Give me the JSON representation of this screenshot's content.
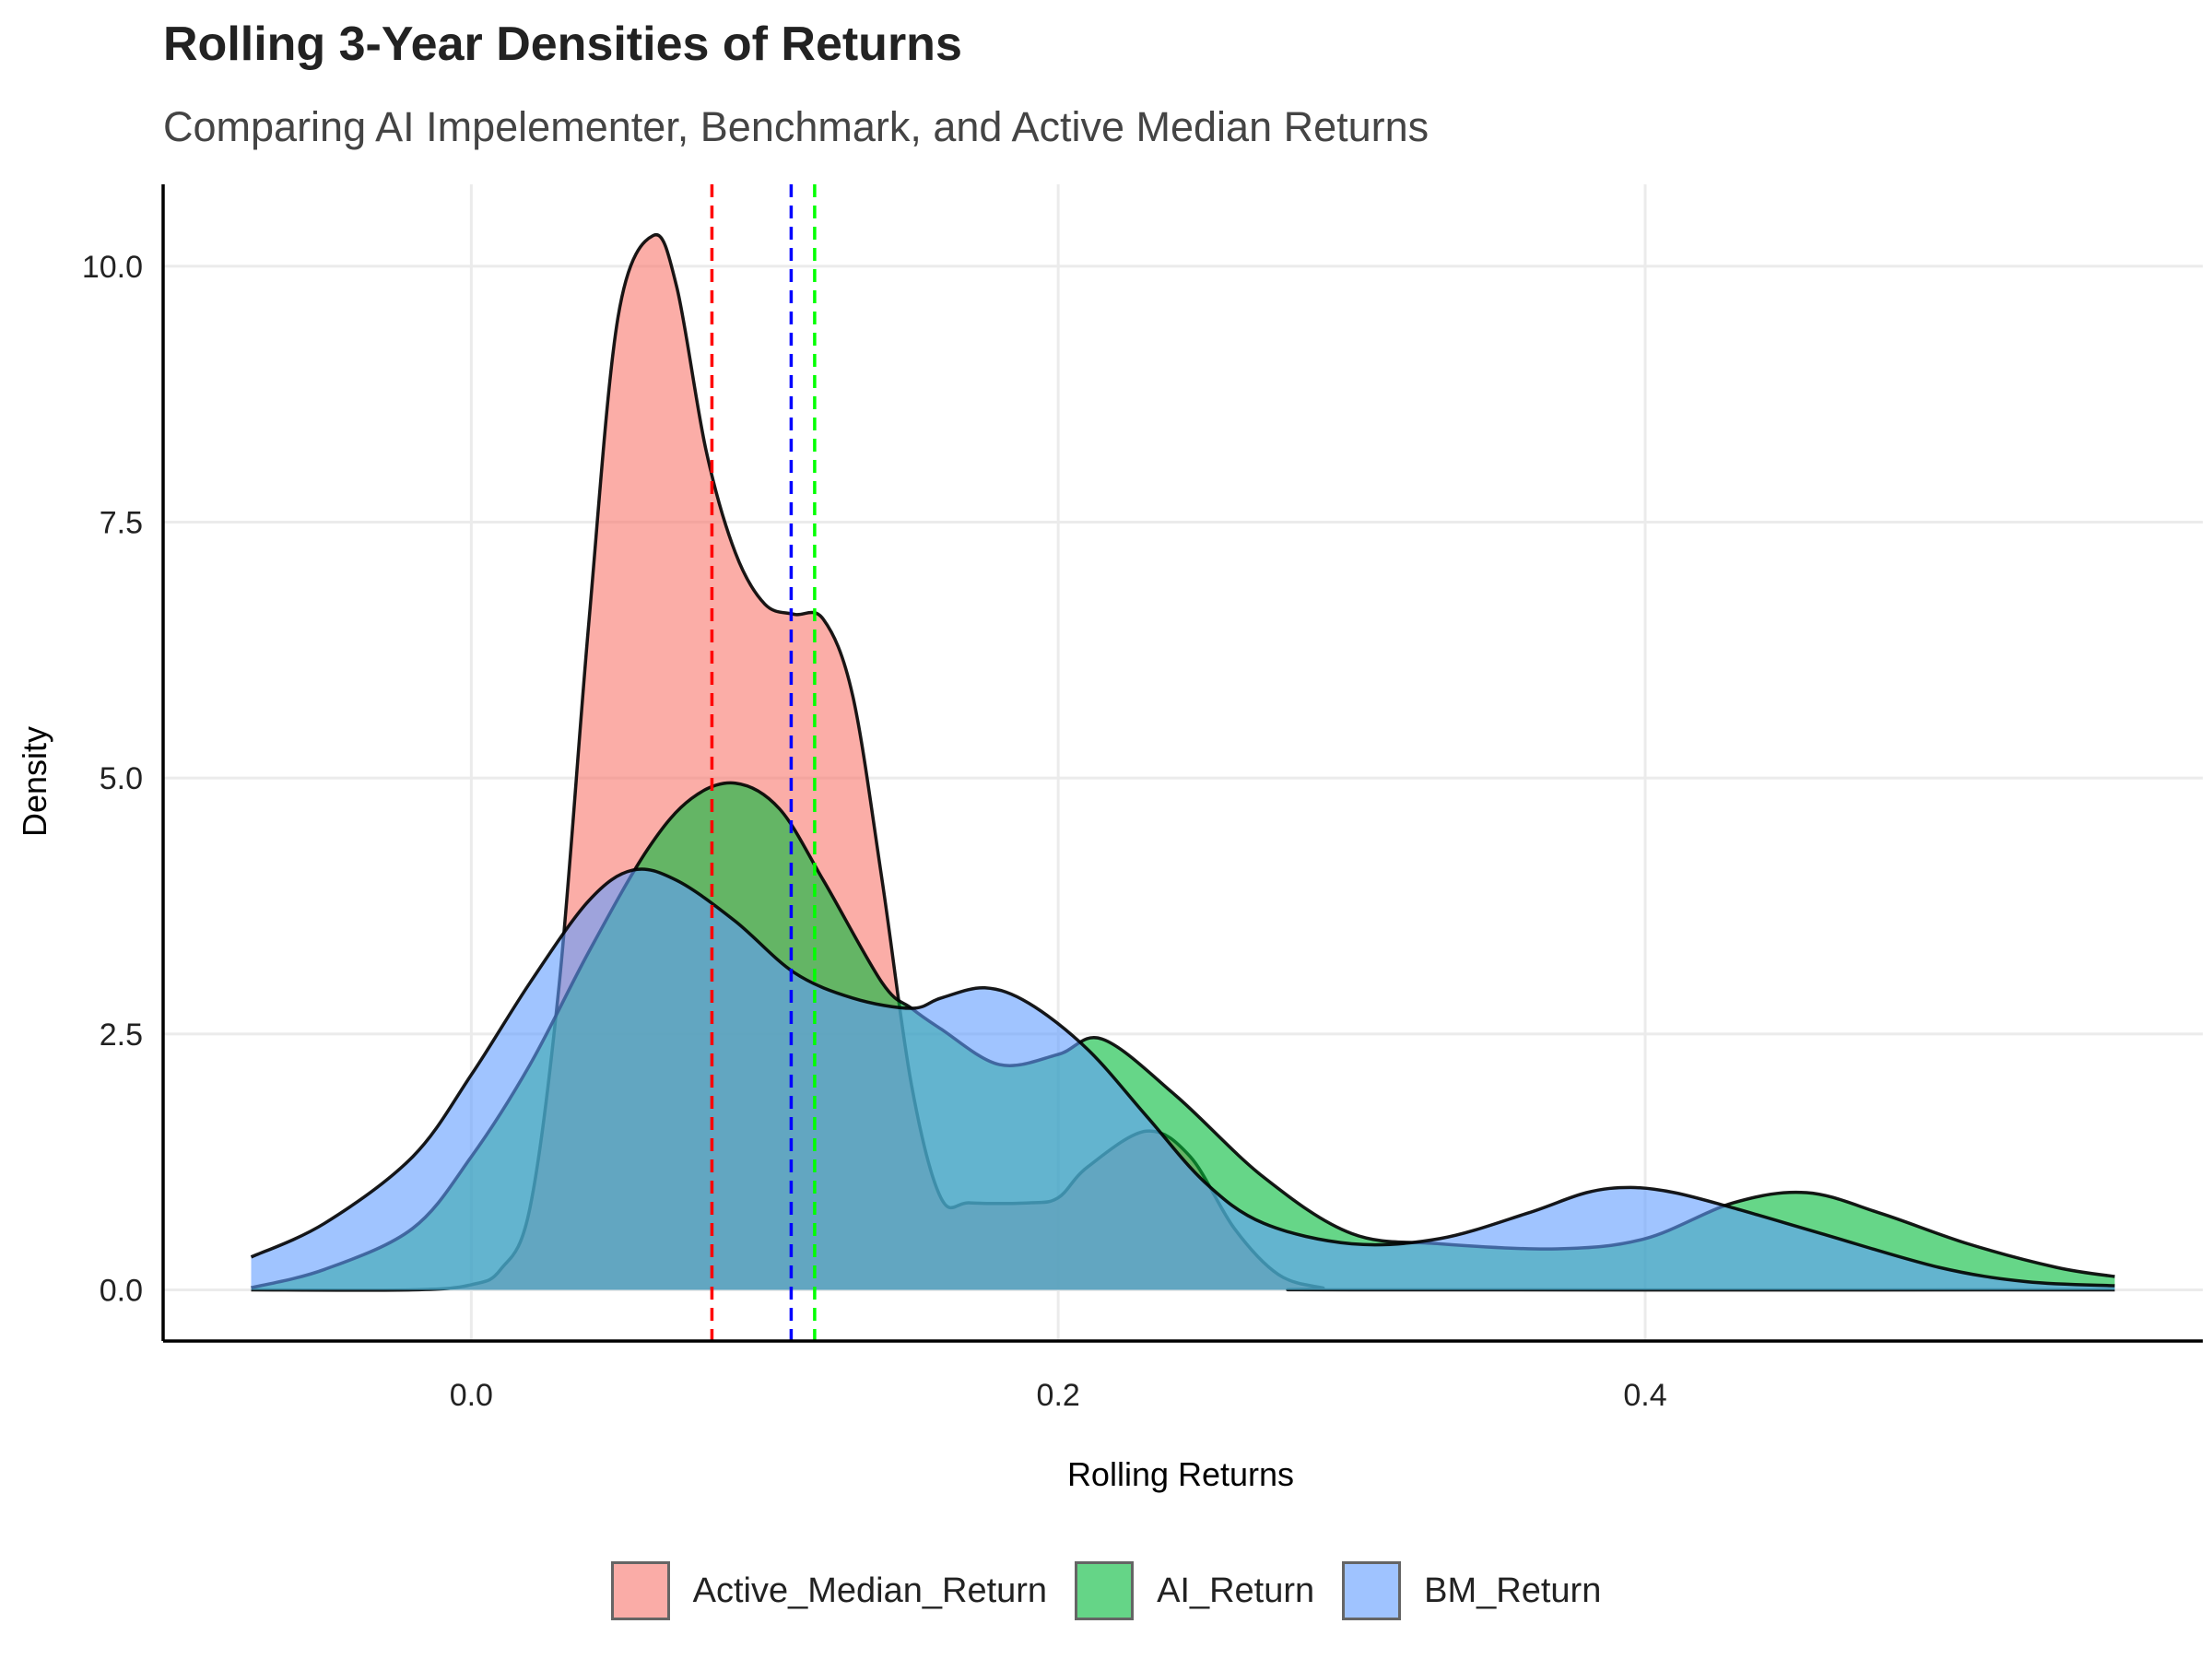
{
  "chart_data": {
    "type": "area",
    "title": "Rolling 3-Year Densities of Returns",
    "subtitle": "Comparing AI Impelementer, Benchmark, and Active Median Returns",
    "xlabel": "Rolling Returns",
    "ylabel": "Density",
    "xlim": [
      -0.105,
      0.59
    ],
    "ylim": [
      -0.5,
      10.8
    ],
    "x_ticks": [
      0.0,
      0.2,
      0.4
    ],
    "x_tick_labels": [
      "0.0",
      "0.2",
      "0.4"
    ],
    "y_ticks": [
      0.0,
      2.5,
      5.0,
      7.5,
      10.0
    ],
    "y_tick_labels": [
      "0.0",
      "2.5",
      "5.0",
      "7.5",
      "10.0"
    ],
    "grid": true,
    "legend_position": "bottom",
    "series": [
      {
        "name": "Active_Median_Return",
        "color": "#F8766D",
        "points": [
          [
            -0.075,
            0.0
          ],
          [
            -0.02,
            0.0
          ],
          [
            0.0,
            0.05
          ],
          [
            0.01,
            0.2
          ],
          [
            0.02,
            0.8
          ],
          [
            0.03,
            3.0
          ],
          [
            0.04,
            6.5
          ],
          [
            0.05,
            9.5
          ],
          [
            0.062,
            10.3
          ],
          [
            0.07,
            9.8
          ],
          [
            0.08,
            8.2
          ],
          [
            0.09,
            7.2
          ],
          [
            0.1,
            6.7
          ],
          [
            0.11,
            6.6
          ],
          [
            0.12,
            6.55
          ],
          [
            0.13,
            5.8
          ],
          [
            0.14,
            4.0
          ],
          [
            0.15,
            2.0
          ],
          [
            0.16,
            0.9
          ],
          [
            0.17,
            0.85
          ],
          [
            0.19,
            0.85
          ],
          [
            0.2,
            0.9
          ],
          [
            0.21,
            1.2
          ],
          [
            0.23,
            1.55
          ],
          [
            0.245,
            1.3
          ],
          [
            0.26,
            0.6
          ],
          [
            0.275,
            0.15
          ],
          [
            0.29,
            0.02
          ],
          [
            0.3,
            0.0
          ],
          [
            0.56,
            0.0
          ]
        ]
      },
      {
        "name": "AI_Return",
        "color": "#00BA38",
        "points": [
          [
            -0.075,
            0.02
          ],
          [
            -0.05,
            0.2
          ],
          [
            -0.02,
            0.6
          ],
          [
            0.0,
            1.3
          ],
          [
            0.02,
            2.2
          ],
          [
            0.04,
            3.3
          ],
          [
            0.06,
            4.3
          ],
          [
            0.075,
            4.8
          ],
          [
            0.09,
            4.95
          ],
          [
            0.105,
            4.7
          ],
          [
            0.12,
            4.0
          ],
          [
            0.14,
            3.0
          ],
          [
            0.15,
            2.75
          ],
          [
            0.16,
            2.55
          ],
          [
            0.18,
            2.2
          ],
          [
            0.2,
            2.3
          ],
          [
            0.215,
            2.45
          ],
          [
            0.24,
            1.9
          ],
          [
            0.27,
            1.1
          ],
          [
            0.3,
            0.55
          ],
          [
            0.33,
            0.45
          ],
          [
            0.37,
            0.4
          ],
          [
            0.4,
            0.5
          ],
          [
            0.43,
            0.85
          ],
          [
            0.455,
            0.95
          ],
          [
            0.48,
            0.75
          ],
          [
            0.51,
            0.45
          ],
          [
            0.54,
            0.22
          ],
          [
            0.56,
            0.13
          ]
        ]
      },
      {
        "name": "BM_Return",
        "color": "#619CFF",
        "points": [
          [
            -0.075,
            0.32
          ],
          [
            -0.05,
            0.65
          ],
          [
            -0.02,
            1.3
          ],
          [
            0.0,
            2.1
          ],
          [
            0.02,
            3.0
          ],
          [
            0.04,
            3.8
          ],
          [
            0.055,
            4.1
          ],
          [
            0.07,
            4.0
          ],
          [
            0.09,
            3.6
          ],
          [
            0.11,
            3.1
          ],
          [
            0.13,
            2.85
          ],
          [
            0.15,
            2.75
          ],
          [
            0.16,
            2.85
          ],
          [
            0.175,
            2.95
          ],
          [
            0.19,
            2.8
          ],
          [
            0.21,
            2.35
          ],
          [
            0.23,
            1.7
          ],
          [
            0.25,
            1.05
          ],
          [
            0.27,
            0.65
          ],
          [
            0.3,
            0.45
          ],
          [
            0.33,
            0.5
          ],
          [
            0.36,
            0.75
          ],
          [
            0.38,
            0.95
          ],
          [
            0.395,
            1.0
          ],
          [
            0.41,
            0.95
          ],
          [
            0.43,
            0.8
          ],
          [
            0.46,
            0.55
          ],
          [
            0.5,
            0.22
          ],
          [
            0.53,
            0.08
          ],
          [
            0.56,
            0.04
          ]
        ]
      }
    ],
    "reference_lines": [
      {
        "x": 0.082,
        "color": "#FF0000",
        "style": "dashed"
      },
      {
        "x": 0.109,
        "color": "#0000FF",
        "style": "dashed"
      },
      {
        "x": 0.117,
        "color": "#00FF00",
        "style": "dashed"
      }
    ]
  }
}
